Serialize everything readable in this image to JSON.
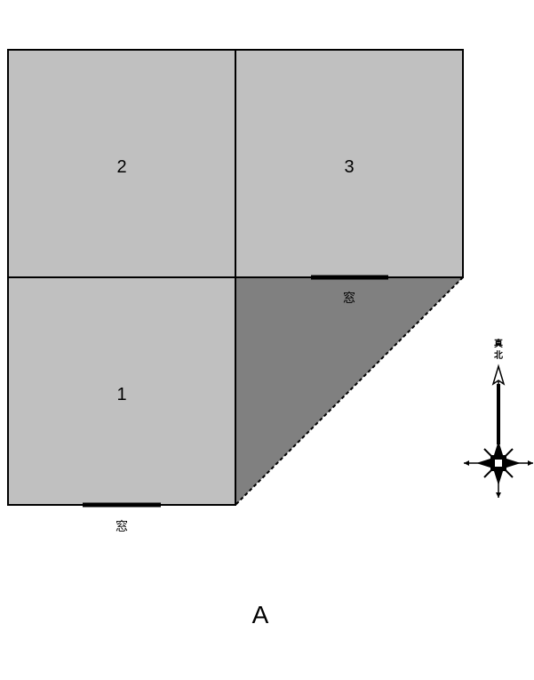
{
  "rooms": [
    {
      "number": "1"
    },
    {
      "number": "2"
    },
    {
      "number": "3"
    }
  ],
  "windows": [
    {
      "label": "窓"
    },
    {
      "label": "窓"
    }
  ],
  "compass": {
    "line1": "真",
    "line2": "北"
  },
  "figure_label": "A",
  "colors": {
    "room_fill": "#c0c0c0",
    "shaded_area": "#808080",
    "outline": "#000000"
  }
}
